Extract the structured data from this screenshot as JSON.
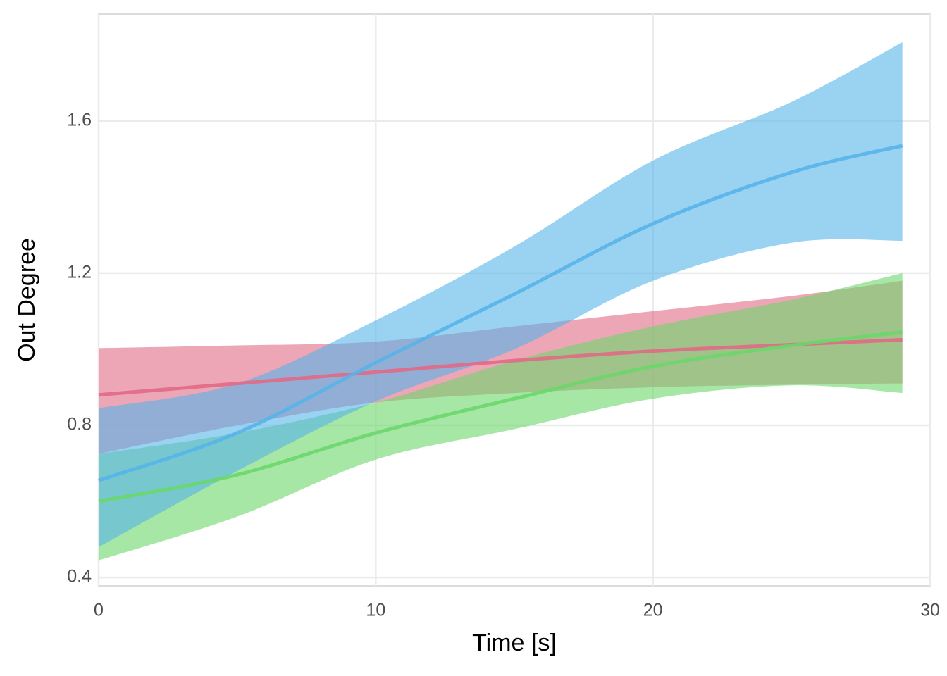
{
  "chart_data": {
    "type": "line",
    "x_label": "Time [s]",
    "y_label": "Out Degree",
    "x": [
      0,
      5,
      10,
      15,
      20,
      25,
      29
    ],
    "series": [
      {
        "color": "#E16A86",
        "values": [
          0.88,
          0.91,
          0.94,
          0.97,
          0.995,
          1.012,
          1.025
        ],
        "lower": [
          0.725,
          0.8,
          0.86,
          0.885,
          0.9,
          0.907,
          0.91
        ],
        "upper": [
          1.003,
          1.01,
          1.02,
          1.06,
          1.1,
          1.14,
          1.18
        ]
      },
      {
        "color": "#6BD76B",
        "values": [
          0.6,
          0.67,
          0.78,
          0.87,
          0.955,
          1.01,
          1.045
        ],
        "lower": [
          0.445,
          0.56,
          0.71,
          0.79,
          0.87,
          0.905,
          0.885
        ],
        "upper": [
          0.725,
          0.78,
          0.86,
          0.97,
          1.06,
          1.13,
          1.2
        ]
      },
      {
        "color": "#56B4E9",
        "values": [
          0.655,
          0.78,
          0.965,
          1.145,
          1.33,
          1.465,
          1.535
        ],
        "lower": [
          0.48,
          0.68,
          0.863,
          1.0,
          1.18,
          1.28,
          1.285
        ],
        "upper": [
          0.845,
          0.91,
          1.076,
          1.27,
          1.496,
          1.65,
          1.807
        ]
      }
    ],
    "xlim": [
      0,
      30
    ],
    "ylim": [
      0.378,
      1.881
    ],
    "xticks": [
      0,
      10,
      20,
      30
    ],
    "yticks": [
      0.4,
      0.8,
      1.2,
      1.6
    ],
    "grid": true
  }
}
